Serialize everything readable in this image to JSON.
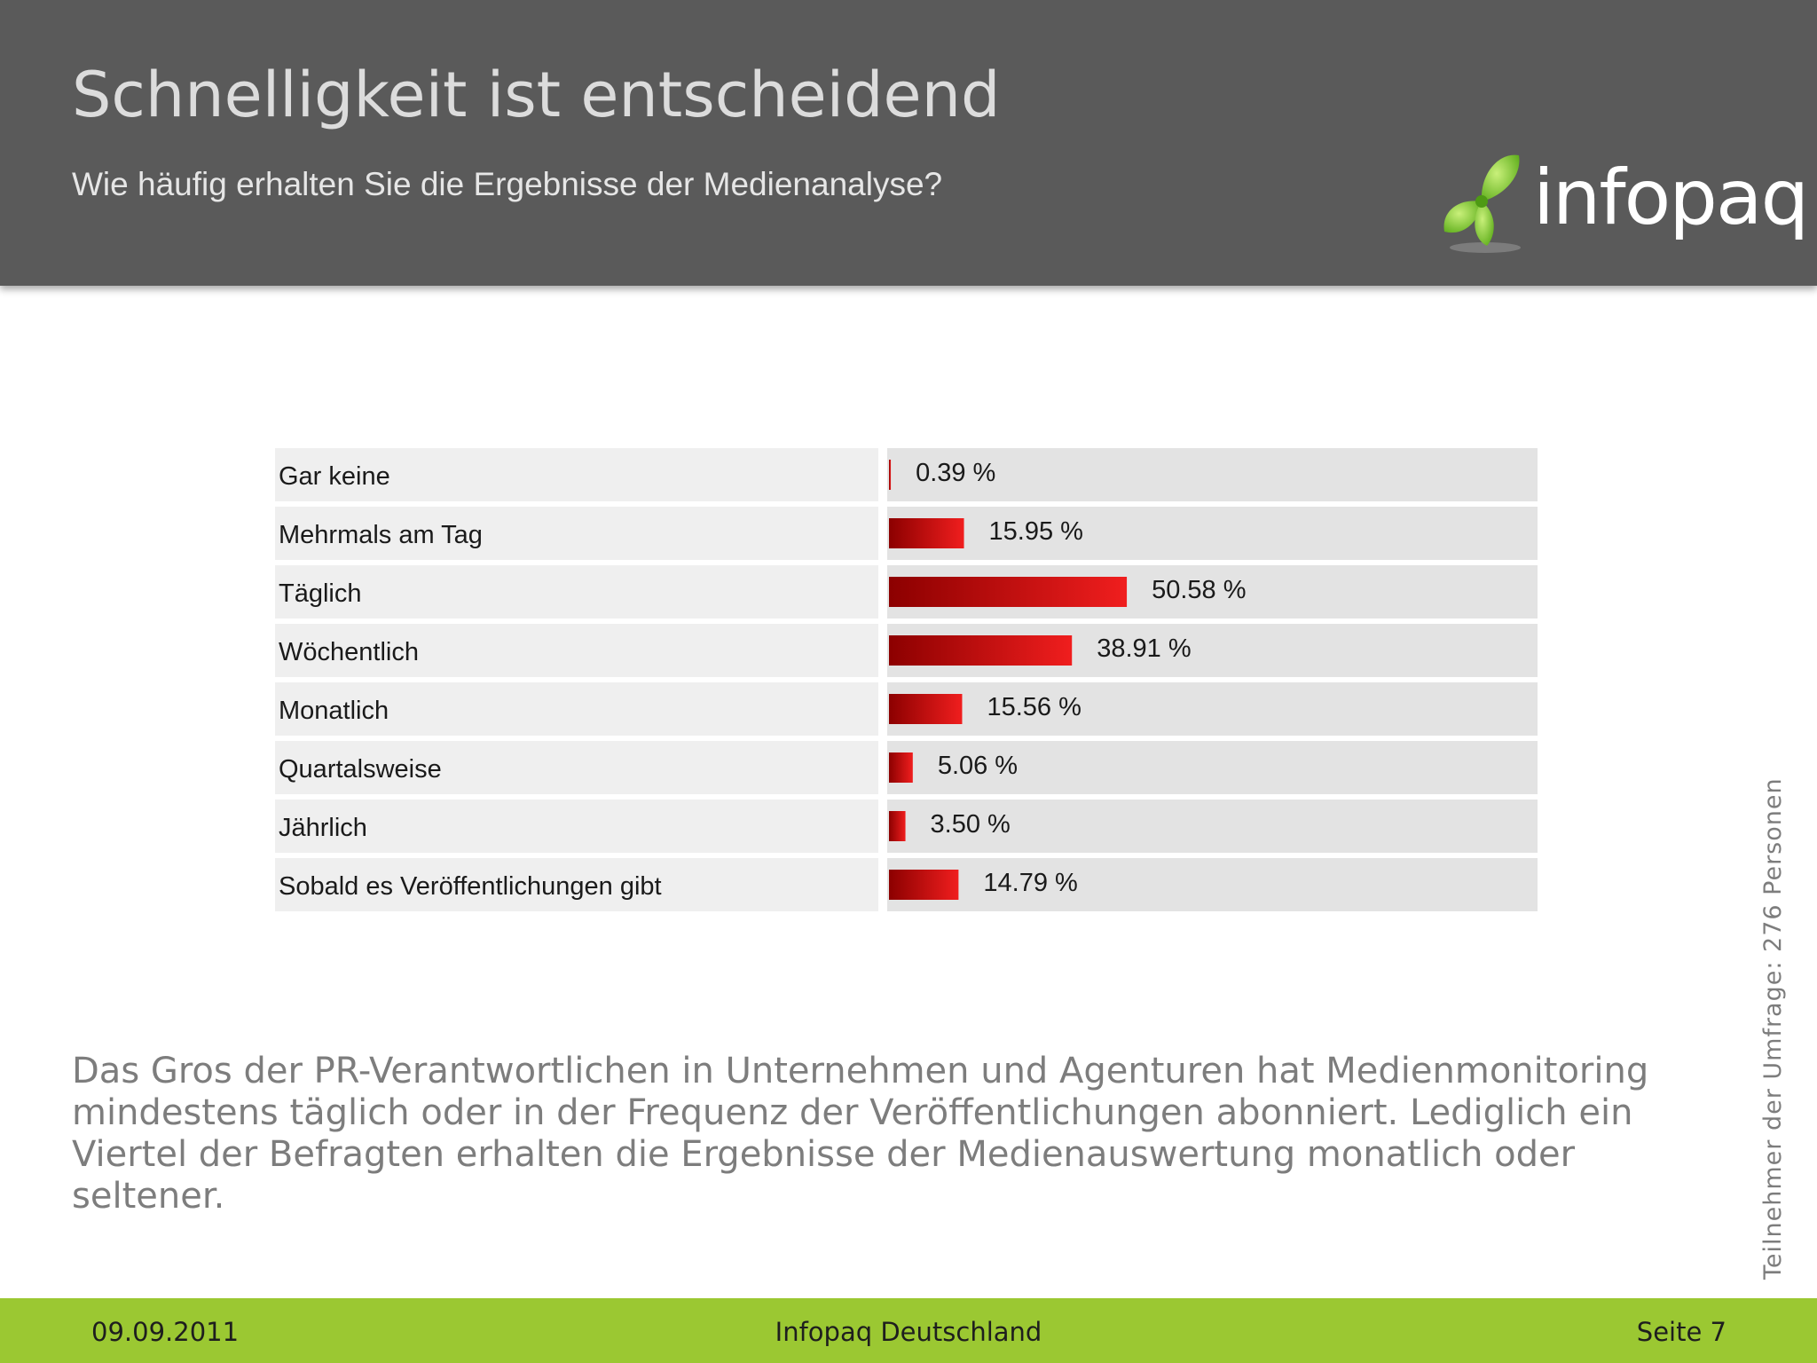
{
  "slide": {
    "title": "Schnelligkeit ist entscheidend",
    "subtitle": "Wie häufig erhalten Sie die Ergebnisse der Medienanalyse?",
    "logo_text": "infopaq",
    "description": "Das Gros der PR-Verantwortlichen in Unternehmen und Agenturen hat Medienmonitoring mindestens täglich oder in der Frequenz der Veröffentlichungen abonniert. Lediglich ein Viertel der Befragten erhalten die Ergebnisse der Medienauswertung monatlich oder seltener.",
    "side_note": "Teilnehmer der Umfrage: 276 Personen"
  },
  "footer": {
    "date": "09.09.2011",
    "company": "Infopaq Deutschland",
    "page": "Seite 7"
  },
  "colors": {
    "header_bg": "#5a5a5a",
    "footer_bg": "#9bc832",
    "bar_dark": "#8c0000",
    "bar_light": "#f01e1e",
    "logo_green": "#8fd12c"
  },
  "chart_data": {
    "type": "bar",
    "orientation": "horizontal",
    "categories": [
      "Gar keine",
      "Mehrmals am Tag",
      "Täglich",
      "Wöchentlich",
      "Monatlich",
      "Quartalsweise",
      "Jährlich",
      "Sobald es Veröffentlichungen gibt"
    ],
    "values": [
      0.39,
      15.95,
      50.58,
      38.91,
      15.56,
      5.06,
      3.5,
      14.79
    ],
    "value_labels": [
      "0.39 %",
      "15.95 %",
      "50.58 %",
      "38.91 %",
      "15.56 %",
      "5.06 %",
      "3.50 %",
      "14.79 %"
    ],
    "unit": "%",
    "xlim": [
      0,
      100
    ],
    "grid": false,
    "legend": "none"
  }
}
